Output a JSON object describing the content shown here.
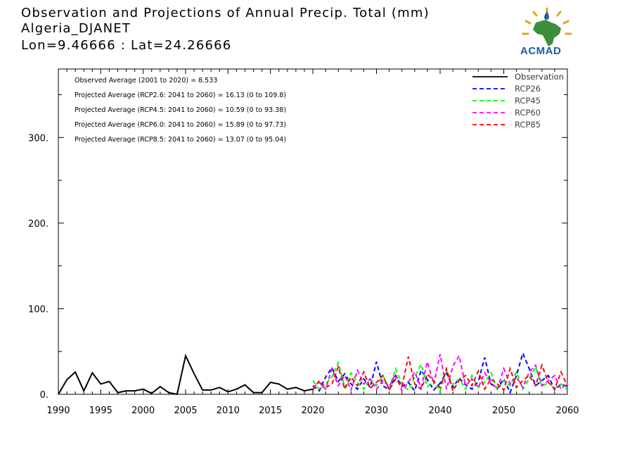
{
  "title": {
    "line1": "Observation and Projections of Annual Precip. Total (mm)",
    "line2": "Algeria_DJANET",
    "line3": "Lon=9.46666 : Lat=24.26666"
  },
  "logo": {
    "text": "ACMAD",
    "colors": {
      "blue": "#1b5ea8",
      "green": "#3c8f3a",
      "orange": "#e8a21a"
    }
  },
  "stats": [
    "Observed Average (2001 to 2020) = 8.533",
    "Projected Average (RCP2.6: 2041 to 2060) = 16.13 (0 to 109.8)",
    "Projected Average (RCP4.5: 2041 to 2060) = 10.59 (0 to 93.38)",
    "Projected Average (RCP6.0: 2041 to 2060) = 15.89 (0 to 97.73)",
    "Projected Average (RCP8.5: 2041 to 2060) = 13.07 (0 to 95.04)"
  ],
  "chart_data": {
    "type": "line",
    "xlim": [
      1990,
      2060
    ],
    "ylim": [
      0,
      380
    ],
    "x_ticks": [
      "1990",
      "1995",
      "2000",
      "2005",
      "2010",
      "2015",
      "2020",
      "2030",
      "2040",
      "2050",
      "2060"
    ],
    "x_tick_values": [
      1990,
      1995,
      2000,
      2005,
      2010,
      2015,
      2020,
      2030,
      2040,
      2050,
      2060
    ],
    "y_ticks": [
      "0.",
      "100.",
      "200.",
      "300."
    ],
    "y_tick_values": [
      0,
      100,
      200,
      300
    ],
    "legend_position": "top-right",
    "series": [
      {
        "name": "Observation",
        "color": "#000000",
        "dashed": false,
        "x": [
          1990,
          1991,
          1992,
          1993,
          1994,
          1995,
          1996,
          1997,
          1998,
          1999,
          2000,
          2001,
          2002,
          2003,
          2004,
          2005,
          2006,
          2007,
          2008,
          2009,
          2010,
          2011,
          2012,
          2013,
          2014,
          2015,
          2016,
          2017,
          2018,
          2019,
          2020
        ],
        "values": [
          0,
          17,
          26,
          4,
          25,
          12,
          15,
          2,
          4,
          4,
          6,
          1,
          9,
          2,
          0,
          45,
          24,
          5,
          5,
          8,
          3,
          6,
          11,
          2,
          2,
          14,
          12,
          6,
          8,
          4,
          6
        ]
      },
      {
        "name": "RCP26",
        "color": "#0000ff",
        "dashed": true,
        "x": [
          2020,
          2021,
          2022,
          2023,
          2024,
          2025,
          2026,
          2027,
          2028,
          2029,
          2030,
          2031,
          2032,
          2033,
          2034,
          2035,
          2036,
          2037,
          2038,
          2039,
          2040,
          2041,
          2042,
          2043,
          2044,
          2045,
          2046,
          2047,
          2048,
          2049,
          2050,
          2051,
          2052,
          2053,
          2054,
          2055,
          2056,
          2057,
          2058,
          2059,
          2060
        ],
        "values": [
          10,
          4,
          20,
          31,
          15,
          24,
          12,
          6,
          18,
          8,
          38,
          10,
          5,
          22,
          9,
          14,
          4,
          28,
          17,
          5,
          13,
          25,
          8,
          19,
          11,
          6,
          15,
          43,
          12,
          7,
          18,
          2,
          22,
          48,
          30,
          10,
          16,
          22,
          5,
          12,
          9
        ]
      },
      {
        "name": "RCP45",
        "color": "#00ff00",
        "dashed": true,
        "x": [
          2020,
          2021,
          2022,
          2023,
          2024,
          2025,
          2026,
          2027,
          2028,
          2029,
          2030,
          2031,
          2032,
          2033,
          2034,
          2035,
          2036,
          2037,
          2038,
          2039,
          2040,
          2041,
          2042,
          2043,
          2044,
          2045,
          2046,
          2047,
          2048,
          2049,
          2050,
          2051,
          2052,
          2053,
          2054,
          2055,
          2056,
          2057,
          2058,
          2059,
          2060
        ],
        "values": [
          16,
          5,
          12,
          20,
          37,
          8,
          25,
          14,
          6,
          18,
          10,
          22,
          7,
          30,
          12,
          5,
          20,
          35,
          9,
          16,
          4,
          28,
          11,
          18,
          6,
          22,
          8,
          14,
          25,
          5,
          16,
          10,
          26,
          6,
          18,
          32,
          9,
          14,
          7,
          12,
          5
        ]
      },
      {
        "name": "RCP60",
        "color": "#ff00ff",
        "dashed": true,
        "x": [
          2020,
          2021,
          2022,
          2023,
          2024,
          2025,
          2026,
          2027,
          2028,
          2029,
          2030,
          2031,
          2032,
          2033,
          2034,
          2035,
          2036,
          2037,
          2038,
          2039,
          2040,
          2041,
          2042,
          2043,
          2044,
          2045,
          2046,
          2047,
          2048,
          2049,
          2050,
          2051,
          2052,
          2053,
          2054,
          2055,
          2056,
          2057,
          2058,
          2059,
          2060
        ],
        "values": [
          8,
          14,
          6,
          30,
          10,
          22,
          5,
          28,
          12,
          18,
          6,
          16,
          9,
          24,
          4,
          14,
          26,
          8,
          38,
          12,
          47,
          6,
          33,
          45,
          10,
          18,
          8,
          25,
          14,
          6,
          30,
          12,
          20,
          8,
          26,
          34,
          10,
          16,
          22,
          6,
          14
        ]
      },
      {
        "name": "RCP85",
        "color": "#ff0000",
        "dashed": true,
        "x": [
          2020,
          2021,
          2022,
          2023,
          2024,
          2025,
          2026,
          2027,
          2028,
          2029,
          2030,
          2031,
          2032,
          2033,
          2034,
          2035,
          2036,
          2037,
          2038,
          2039,
          2040,
          2041,
          2042,
          2043,
          2044,
          2045,
          2046,
          2047,
          2048,
          2049,
          2050,
          2051,
          2052,
          2053,
          2054,
          2055,
          2056,
          2057,
          2058,
          2059,
          2060
        ],
        "values": [
          5,
          16,
          8,
          12,
          32,
          6,
          20,
          10,
          26,
          7,
          14,
          22,
          5,
          18,
          9,
          44,
          12,
          6,
          24,
          15,
          8,
          30,
          4,
          16,
          22,
          10,
          27,
          6,
          18,
          12,
          5,
          30,
          8,
          16,
          22,
          10,
          34,
          14,
          6,
          26,
          10
        ]
      }
    ]
  }
}
